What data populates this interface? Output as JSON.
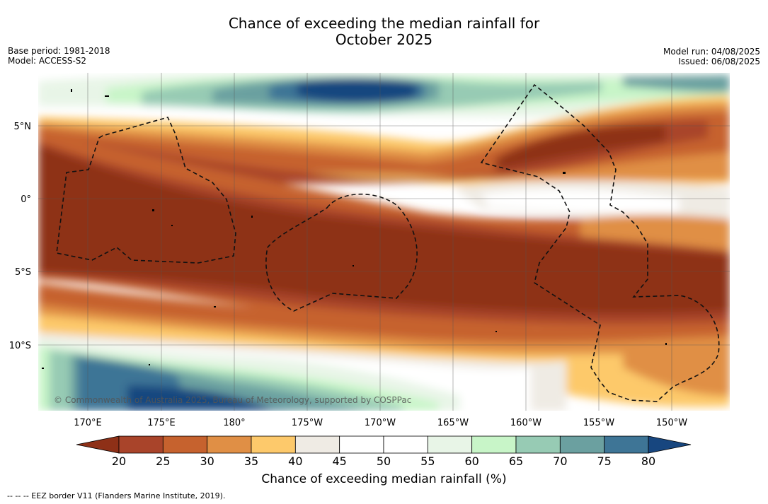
{
  "title_line1": "Chance of exceeding the median rainfall for",
  "title_line2": "October 2025",
  "meta_left": [
    "Base period: 1981-2018",
    "Model: ACCESS-S2"
  ],
  "meta_right": [
    "Model run: 04/08/2025",
    "Issued: 06/08/2025"
  ],
  "lat_labels": [
    "5°N",
    "0°",
    "5°S",
    "10°S"
  ],
  "lon_labels": [
    "170°E",
    "175°E",
    "180°",
    "175°W",
    "170°W",
    "165°W",
    "160°W",
    "155°W",
    "150°W"
  ],
  "copyright": "© Commonwealth of Australia 2025, Bureau of Meteorology, supported by COSPPac",
  "colorbar": {
    "ticks": [
      "20",
      "25",
      "30",
      "35",
      "40",
      "45",
      "50",
      "55",
      "60",
      "65",
      "70",
      "75",
      "80"
    ],
    "colors": [
      "#8e3017",
      "#a9442a",
      "#c6622e",
      "#e08f45",
      "#fdc96b",
      "#efebe4",
      "#ffffff",
      "#ffffff",
      "#e8f5e7",
      "#c8f5c8",
      "#97cbb4",
      "#6ba0a0",
      "#3e7596",
      "#17467f"
    ],
    "title": "Chance of exceeding median rainfall (%)"
  },
  "footnote": "--  --  -- EEZ border V11 (Flanders Marine Institute, 2019)."
}
